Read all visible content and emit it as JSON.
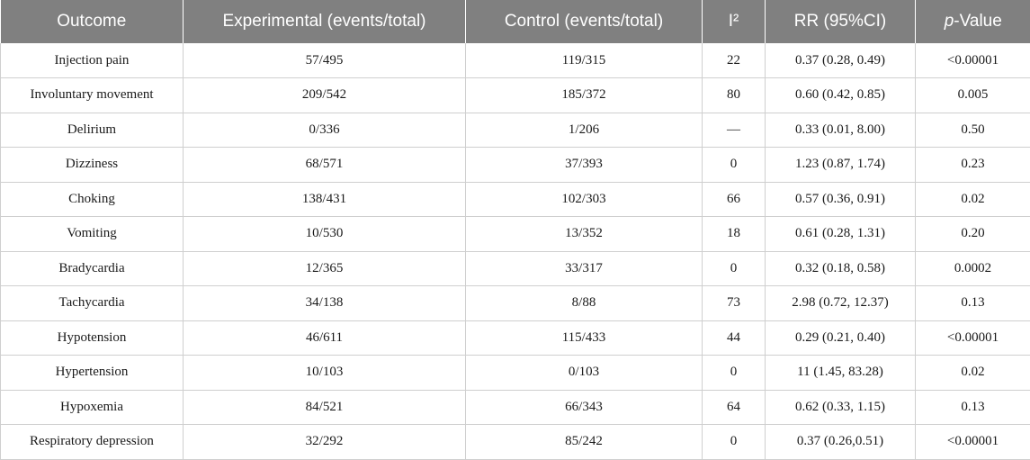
{
  "table": {
    "headers": {
      "outcome": "Outcome",
      "experimental": "Experimental (events/total)",
      "control": "Control (events/total)",
      "i2": "I²",
      "rr": "RR (95%CI)",
      "p_italic": "p",
      "p_rest": "-Value"
    },
    "rows": [
      {
        "outcome": "Injection pain",
        "experimental": "57/495",
        "control": "119/315",
        "i2": "22",
        "rr": "0.37 (0.28, 0.49)",
        "p": "<0.00001"
      },
      {
        "outcome": "Involuntary movement",
        "experimental": "209/542",
        "control": "185/372",
        "i2": "80",
        "rr": "0.60 (0.42, 0.85)",
        "p": "0.005"
      },
      {
        "outcome": "Delirium",
        "experimental": "0/336",
        "control": "1/206",
        "i2": "—",
        "rr": "0.33 (0.01, 8.00)",
        "p": "0.50"
      },
      {
        "outcome": "Dizziness",
        "experimental": "68/571",
        "control": "37/393",
        "i2": "0",
        "rr": "1.23 (0.87, 1.74)",
        "p": "0.23"
      },
      {
        "outcome": "Choking",
        "experimental": "138/431",
        "control": "102/303",
        "i2": "66",
        "rr": "0.57 (0.36, 0.91)",
        "p": "0.02"
      },
      {
        "outcome": "Vomiting",
        "experimental": "10/530",
        "control": "13/352",
        "i2": "18",
        "rr": "0.61 (0.28, 1.31)",
        "p": "0.20"
      },
      {
        "outcome": "Bradycardia",
        "experimental": "12/365",
        "control": "33/317",
        "i2": "0",
        "rr": "0.32 (0.18, 0.58)",
        "p": "0.0002"
      },
      {
        "outcome": "Tachycardia",
        "experimental": "34/138",
        "control": "8/88",
        "i2": "73",
        "rr": "2.98 (0.72, 12.37)",
        "p": "0.13"
      },
      {
        "outcome": "Hypotension",
        "experimental": "46/611",
        "control": "115/433",
        "i2": "44",
        "rr": "0.29 (0.21, 0.40)",
        "p": "<0.00001"
      },
      {
        "outcome": "Hypertension",
        "experimental": "10/103",
        "control": "0/103",
        "i2": "0",
        "rr": "11 (1.45, 83.28)",
        "p": "0.02"
      },
      {
        "outcome": "Hypoxemia",
        "experimental": "84/521",
        "control": "66/343",
        "i2": "64",
        "rr": "0.62 (0.33, 1.15)",
        "p": "0.13"
      },
      {
        "outcome": "Respiratory depression",
        "experimental": "32/292",
        "control": "85/242",
        "i2": "0",
        "rr": "0.37 (0.26,0.51)",
        "p": "<0.00001"
      }
    ]
  },
  "colors": {
    "header_bg": "#808080",
    "header_text": "#ffffff",
    "grid_line": "#cfcfcf"
  }
}
